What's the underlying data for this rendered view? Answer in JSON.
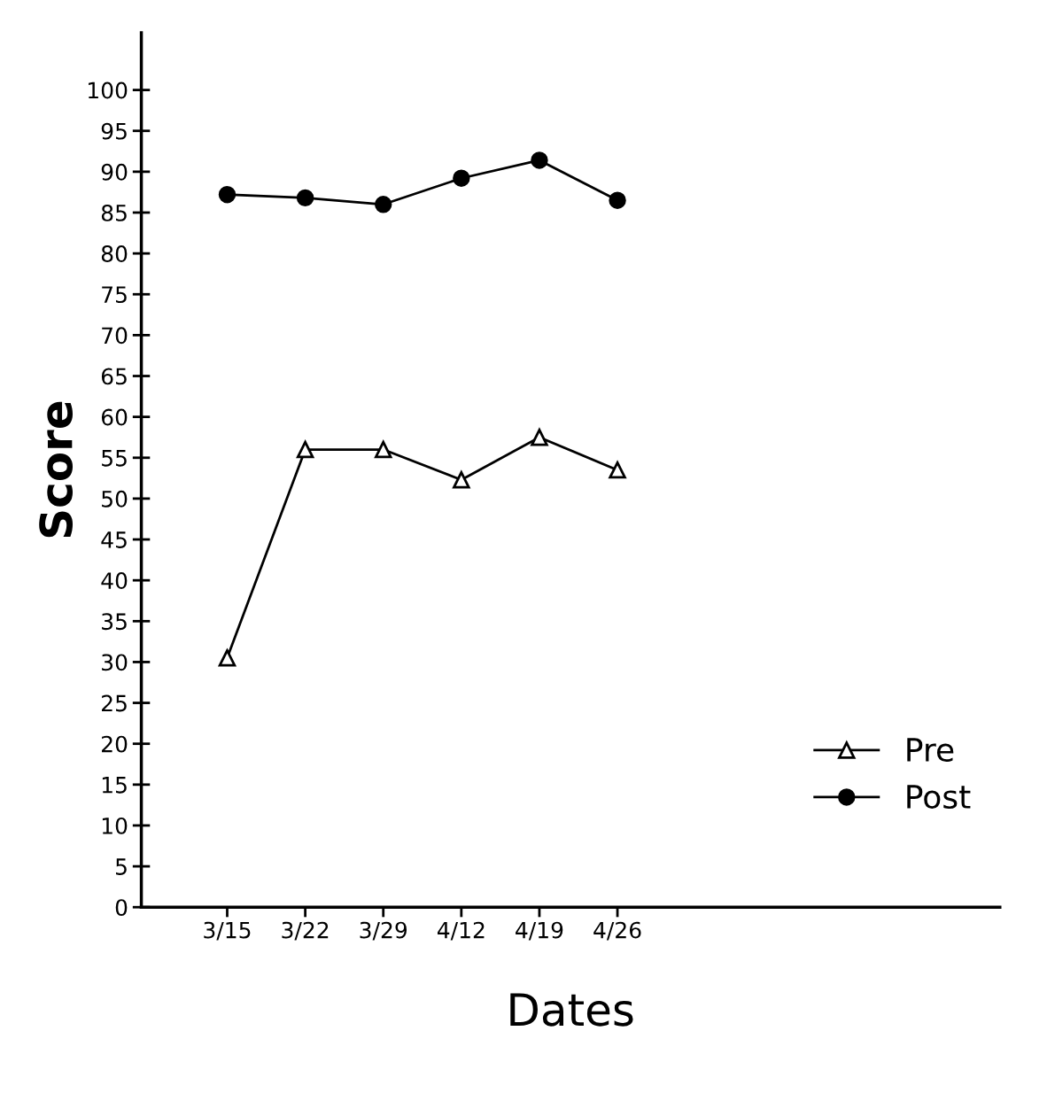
{
  "chart_data": {
    "type": "line",
    "xlabel": "Dates",
    "ylabel": "Score",
    "categories": [
      "3/15",
      "3/22",
      "3/29",
      "4/12",
      "4/19",
      "4/26"
    ],
    "series": [
      {
        "name": "Pre",
        "color": "#000000",
        "marker": "triangle",
        "values": [
          30.5,
          56,
          56,
          52.3,
          57.5,
          53.5
        ]
      },
      {
        "name": "Post",
        "color": "#000000",
        "marker": "circle",
        "values": [
          87.2,
          86.8,
          86,
          89.2,
          91.4,
          86.5
        ]
      }
    ],
    "ylim": [
      0,
      107
    ],
    "yticks": [
      0,
      5,
      10,
      15,
      20,
      25,
      30,
      35,
      40,
      45,
      50,
      55,
      60,
      65,
      70,
      75,
      80,
      85,
      90,
      95,
      100
    ],
    "grid": false,
    "legend": "right",
    "line_style": "solid"
  }
}
